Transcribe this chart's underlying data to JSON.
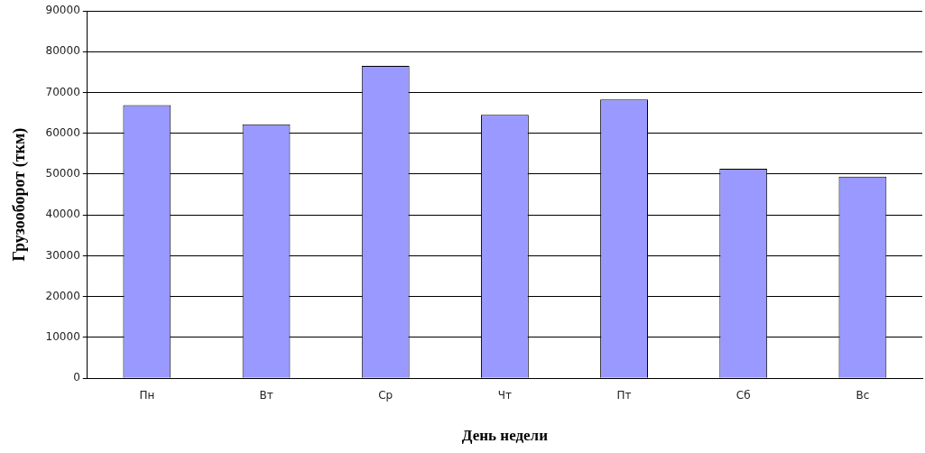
{
  "chart_data": {
    "type": "bar",
    "xlabel": "День недели",
    "ylabel": "Грузооборот (ткм)",
    "categories": [
      "Пн",
      "Вт",
      "Ср",
      "Чт",
      "Пт",
      "Сб",
      "Вс"
    ],
    "values": [
      66900,
      62200,
      76500,
      64500,
      68300,
      51300,
      49400
    ],
    "color": "#9999ff",
    "ylim": [
      0,
      90000
    ],
    "yticks": [
      0,
      10000,
      20000,
      30000,
      40000,
      50000,
      60000,
      70000,
      80000,
      90000
    ],
    "grid": "y",
    "legend": false
  }
}
